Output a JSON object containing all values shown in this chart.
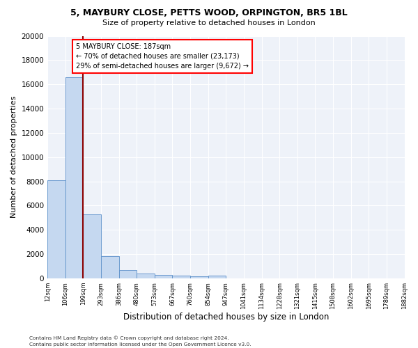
{
  "title1": "5, MAYBURY CLOSE, PETTS WOOD, ORPINGTON, BR5 1BL",
  "title2": "Size of property relative to detached houses in London",
  "xlabel": "Distribution of detached houses by size in London",
  "ylabel": "Number of detached properties",
  "bar_color": "#c5d8f0",
  "bar_edge_color": "#5b8fc9",
  "vline_color": "#8b0000",
  "vline_idx": 2,
  "annotation_title": "5 MAYBURY CLOSE: 187sqm",
  "annotation_line1": "← 70% of detached houses are smaller (23,173)",
  "annotation_line2": "29% of semi-detached houses are larger (9,672) →",
  "footnote1": "Contains HM Land Registry data © Crown copyright and database right 2024.",
  "footnote2": "Contains public sector information licensed under the Open Government Licence v3.0.",
  "bin_labels": [
    "12sqm",
    "106sqm",
    "199sqm",
    "293sqm",
    "386sqm",
    "480sqm",
    "573sqm",
    "667sqm",
    "760sqm",
    "854sqm",
    "947sqm",
    "1041sqm",
    "1134sqm",
    "1228sqm",
    "1321sqm",
    "1415sqm",
    "1508sqm",
    "1602sqm",
    "1695sqm",
    "1789sqm",
    "1882sqm"
  ],
  "bar_heights": [
    8100,
    16600,
    5300,
    1850,
    700,
    380,
    280,
    200,
    170,
    200,
    0,
    0,
    0,
    0,
    0,
    0,
    0,
    0,
    0,
    0
  ],
  "ylim": [
    0,
    20000
  ],
  "yticks": [
    0,
    2000,
    4000,
    6000,
    8000,
    10000,
    12000,
    14000,
    16000,
    18000,
    20000
  ],
  "background_color": "#eef2f9",
  "grid_color": "#ffffff"
}
